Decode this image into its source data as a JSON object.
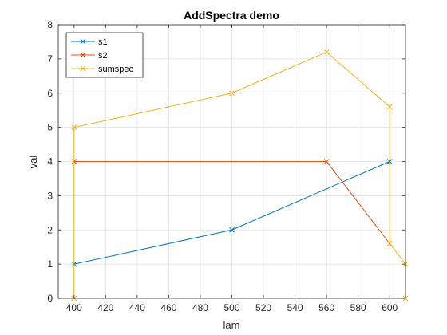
{
  "chart_data": {
    "type": "line",
    "title": "AddSpectra demo",
    "xlabel": "lam",
    "ylabel": "val",
    "xlim": [
      390,
      610
    ],
    "ylim": [
      0,
      8
    ],
    "xticks": [
      400,
      420,
      440,
      460,
      480,
      500,
      520,
      540,
      560,
      580,
      600
    ],
    "yticks": [
      0,
      1,
      2,
      3,
      4,
      5,
      6,
      7,
      8
    ],
    "grid": true,
    "legend_position": "top-left",
    "marker": "x",
    "series": [
      {
        "name": "s1",
        "color": "#0072BD",
        "points": [
          [
            400,
            1
          ],
          [
            500,
            2
          ],
          [
            600,
            4
          ]
        ]
      },
      {
        "name": "s2",
        "color": "#D95319",
        "points": [
          [
            400,
            4
          ],
          [
            560,
            4
          ],
          [
            600,
            1.6
          ]
        ]
      },
      {
        "name": "sumspec",
        "color": "#EDB120",
        "points": [
          [
            400,
            0
          ],
          [
            400,
            5
          ],
          [
            500,
            6
          ],
          [
            560,
            7.2
          ],
          [
            600,
            5.6
          ],
          [
            600,
            1.6
          ],
          [
            610,
            1
          ],
          [
            610,
            0
          ]
        ]
      }
    ]
  }
}
